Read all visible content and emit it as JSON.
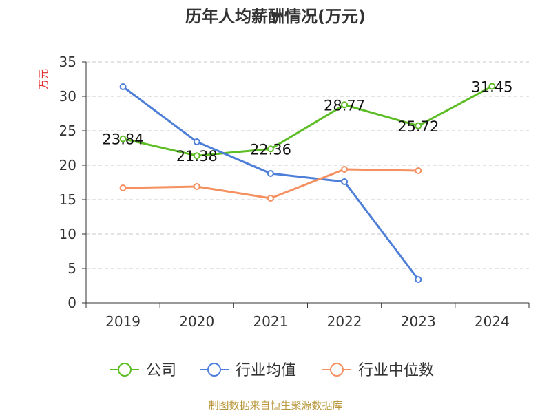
{
  "title": "历年人均薪酬情况(万元)",
  "source_note": "制图数据来自恒生聚源数据库",
  "colors": {
    "company": "#5cbd25",
    "industry_avg": "#4d7fd8",
    "industry_median": "#f59061",
    "axis": "#333333",
    "grid": "#c8c8c8",
    "ylabel": "#e03030"
  },
  "chart_data": {
    "type": "line",
    "title": "历年人均薪酬情况(万元)",
    "xlabel": "",
    "ylabel": "万元",
    "ylim": [
      0,
      35
    ],
    "yticks": [
      0,
      5,
      10,
      15,
      20,
      25,
      30,
      35
    ],
    "grid": true,
    "legend_position": "bottom",
    "categories": [
      "2019",
      "2020",
      "2021",
      "2022",
      "2023",
      "2024"
    ],
    "series": [
      {
        "name": "公司",
        "color_key": "company",
        "values": [
          23.84,
          21.38,
          22.36,
          28.77,
          25.72,
          31.45
        ],
        "labels": [
          "23.84",
          "21.38",
          "22.36",
          "28.77",
          "25.72",
          "31.45"
        ]
      },
      {
        "name": "行业均值",
        "color_key": "industry_avg",
        "values": [
          31.4,
          23.4,
          18.8,
          17.6,
          3.4,
          null
        ],
        "labels": []
      },
      {
        "name": "行业中位数",
        "color_key": "industry_median",
        "values": [
          16.7,
          16.9,
          15.2,
          19.4,
          19.2,
          null
        ],
        "labels": []
      }
    ]
  }
}
